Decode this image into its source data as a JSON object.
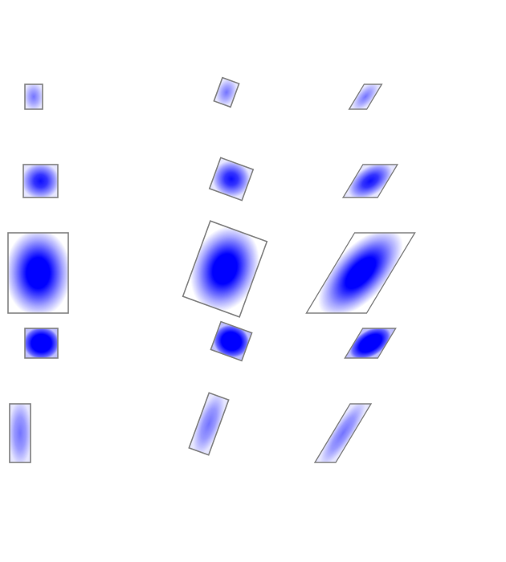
{
  "colors": {
    "fill": "#0000ff",
    "stroke": "#808080",
    "background": "#ffffff"
  },
  "columns": [
    "untransformed",
    "rotated",
    "skewed"
  ],
  "rows": [
    {
      "gradient": "light",
      "peak_opacity": 0.5
    },
    {
      "gradient": "medium",
      "peak_opacity": 0.85
    },
    {
      "gradient": "full",
      "peak_opacity": 1.0
    },
    {
      "gradient": "sharp",
      "peak_opacity": 1.0
    },
    {
      "gradient": "light-elongated",
      "peak_opacity": 0.55
    }
  ]
}
